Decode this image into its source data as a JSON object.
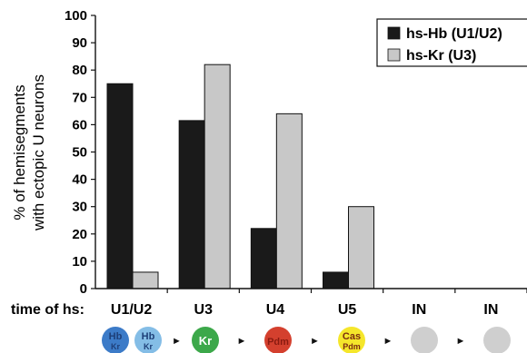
{
  "chart_data": {
    "type": "bar",
    "ylabel": [
      "% of hemisegments",
      "with ectopic U neurons"
    ],
    "ylim": [
      0,
      100
    ],
    "yticks": [
      0,
      10,
      20,
      30,
      40,
      50,
      60,
      70,
      80,
      90,
      100
    ],
    "grid": false,
    "legend_position": "top-right",
    "categories": [
      "U1/U2",
      "U3",
      "U4",
      "U5",
      "IN",
      "IN"
    ],
    "x_label_prefix": "time of hs:",
    "series": [
      {
        "name": "hs-Hb (U1/U2)",
        "color": "#1a1a1a",
        "values": [
          75,
          61.5,
          22,
          6,
          0,
          0
        ]
      },
      {
        "name": "hs-Kr (U3)",
        "color": "#c8c8c8",
        "values": [
          6,
          82,
          64,
          30,
          0,
          0
        ]
      }
    ]
  },
  "timeline": [
    {
      "line1": "Hb",
      "line2": "Kr",
      "fill": "#3c7bc8",
      "text_color": "#1e3f78"
    },
    {
      "line1": "Hb",
      "line2": "Kr",
      "fill": "#84bde6",
      "text_color": "#1e3f78"
    },
    {
      "line1": "Kr",
      "line2": "",
      "fill": "#3ca84a",
      "text_color": "#ffffff"
    },
    {
      "line1": "Pdm",
      "line2": "",
      "fill": "#d4402e",
      "text_color": "#8a1a10"
    },
    {
      "line1": "Cas",
      "line2": "Pdm",
      "fill": "#f5e62b",
      "text_color": "#7a2a10"
    },
    {
      "line1": "",
      "line2": "",
      "fill": "#cfcfcf",
      "text_color": "#cfcfcf"
    },
    {
      "line1": "",
      "line2": "",
      "fill": "#cfcfcf",
      "text_color": "#cfcfcf"
    }
  ],
  "arrow_glyph": "►"
}
